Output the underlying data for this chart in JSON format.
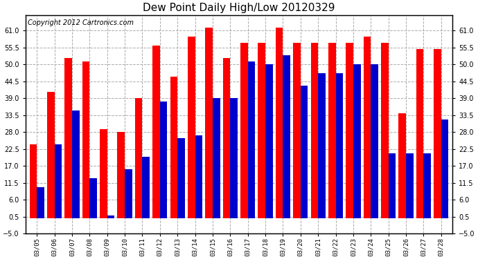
{
  "title": "Dew Point Daily High/Low 20120329",
  "copyright": "Copyright 2012 Cartronics.com",
  "dates": [
    "03/05",
    "03/06",
    "03/07",
    "03/08",
    "03/09",
    "03/10",
    "03/11",
    "03/12",
    "03/13",
    "03/14",
    "03/15",
    "03/16",
    "03/17",
    "03/18",
    "03/19",
    "03/20",
    "03/21",
    "03/22",
    "03/23",
    "03/24",
    "03/25",
    "03/26",
    "03/27",
    "03/28"
  ],
  "highs": [
    24,
    41,
    52,
    51,
    29,
    28,
    39,
    56,
    46,
    59,
    62,
    52,
    57,
    57,
    62,
    57,
    57,
    57,
    57,
    59,
    57,
    34,
    55,
    55
  ],
  "lows": [
    10,
    24,
    35,
    13,
    1,
    16,
    20,
    38,
    26,
    27,
    39,
    39,
    51,
    50,
    53,
    43,
    47,
    47,
    50,
    50,
    21,
    21,
    21,
    32
  ],
  "ylim_min": -5,
  "ylim_max": 66,
  "yticks": [
    -5.0,
    0.5,
    6.0,
    11.5,
    17.0,
    22.5,
    28.0,
    33.5,
    39.0,
    44.5,
    50.0,
    55.5,
    61.0
  ],
  "bar_width": 0.42,
  "high_color": "#ff0000",
  "low_color": "#0000cc",
  "bg_color": "#ffffff",
  "grid_color": "#aaaaaa",
  "title_fontsize": 11,
  "copyright_fontsize": 7,
  "tick_fontsize": 7,
  "xtick_fontsize": 6.5,
  "fig_width": 6.9,
  "fig_height": 3.75,
  "dpi": 100
}
